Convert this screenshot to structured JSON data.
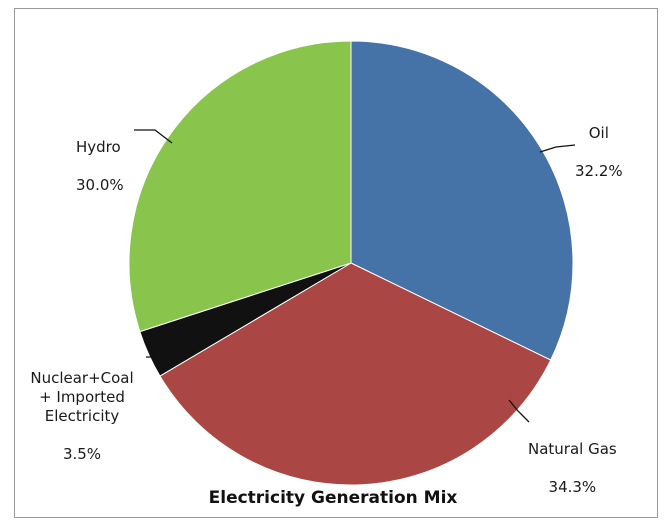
{
  "chart_data": {
    "type": "pie",
    "title": "Electricity Generation Mix",
    "start_angle_deg": 0,
    "direction": "clockwise",
    "legend": "none",
    "slices": [
      {
        "label": "Oil",
        "value": 32.2,
        "value_label": "32.2%",
        "color": "#4572a7"
      },
      {
        "label": "Natural Gas",
        "value": 34.3,
        "value_label": "34.3%",
        "color": "#aa4643"
      },
      {
        "label": "Nuclear+Coal\n+ Imported\nElectricity",
        "value": 3.5,
        "value_label": "3.5%",
        "color": "#111111"
      },
      {
        "label": "Hydro",
        "value": 30.0,
        "value_label": "30.0%",
        "color": "#89c54d"
      }
    ]
  }
}
